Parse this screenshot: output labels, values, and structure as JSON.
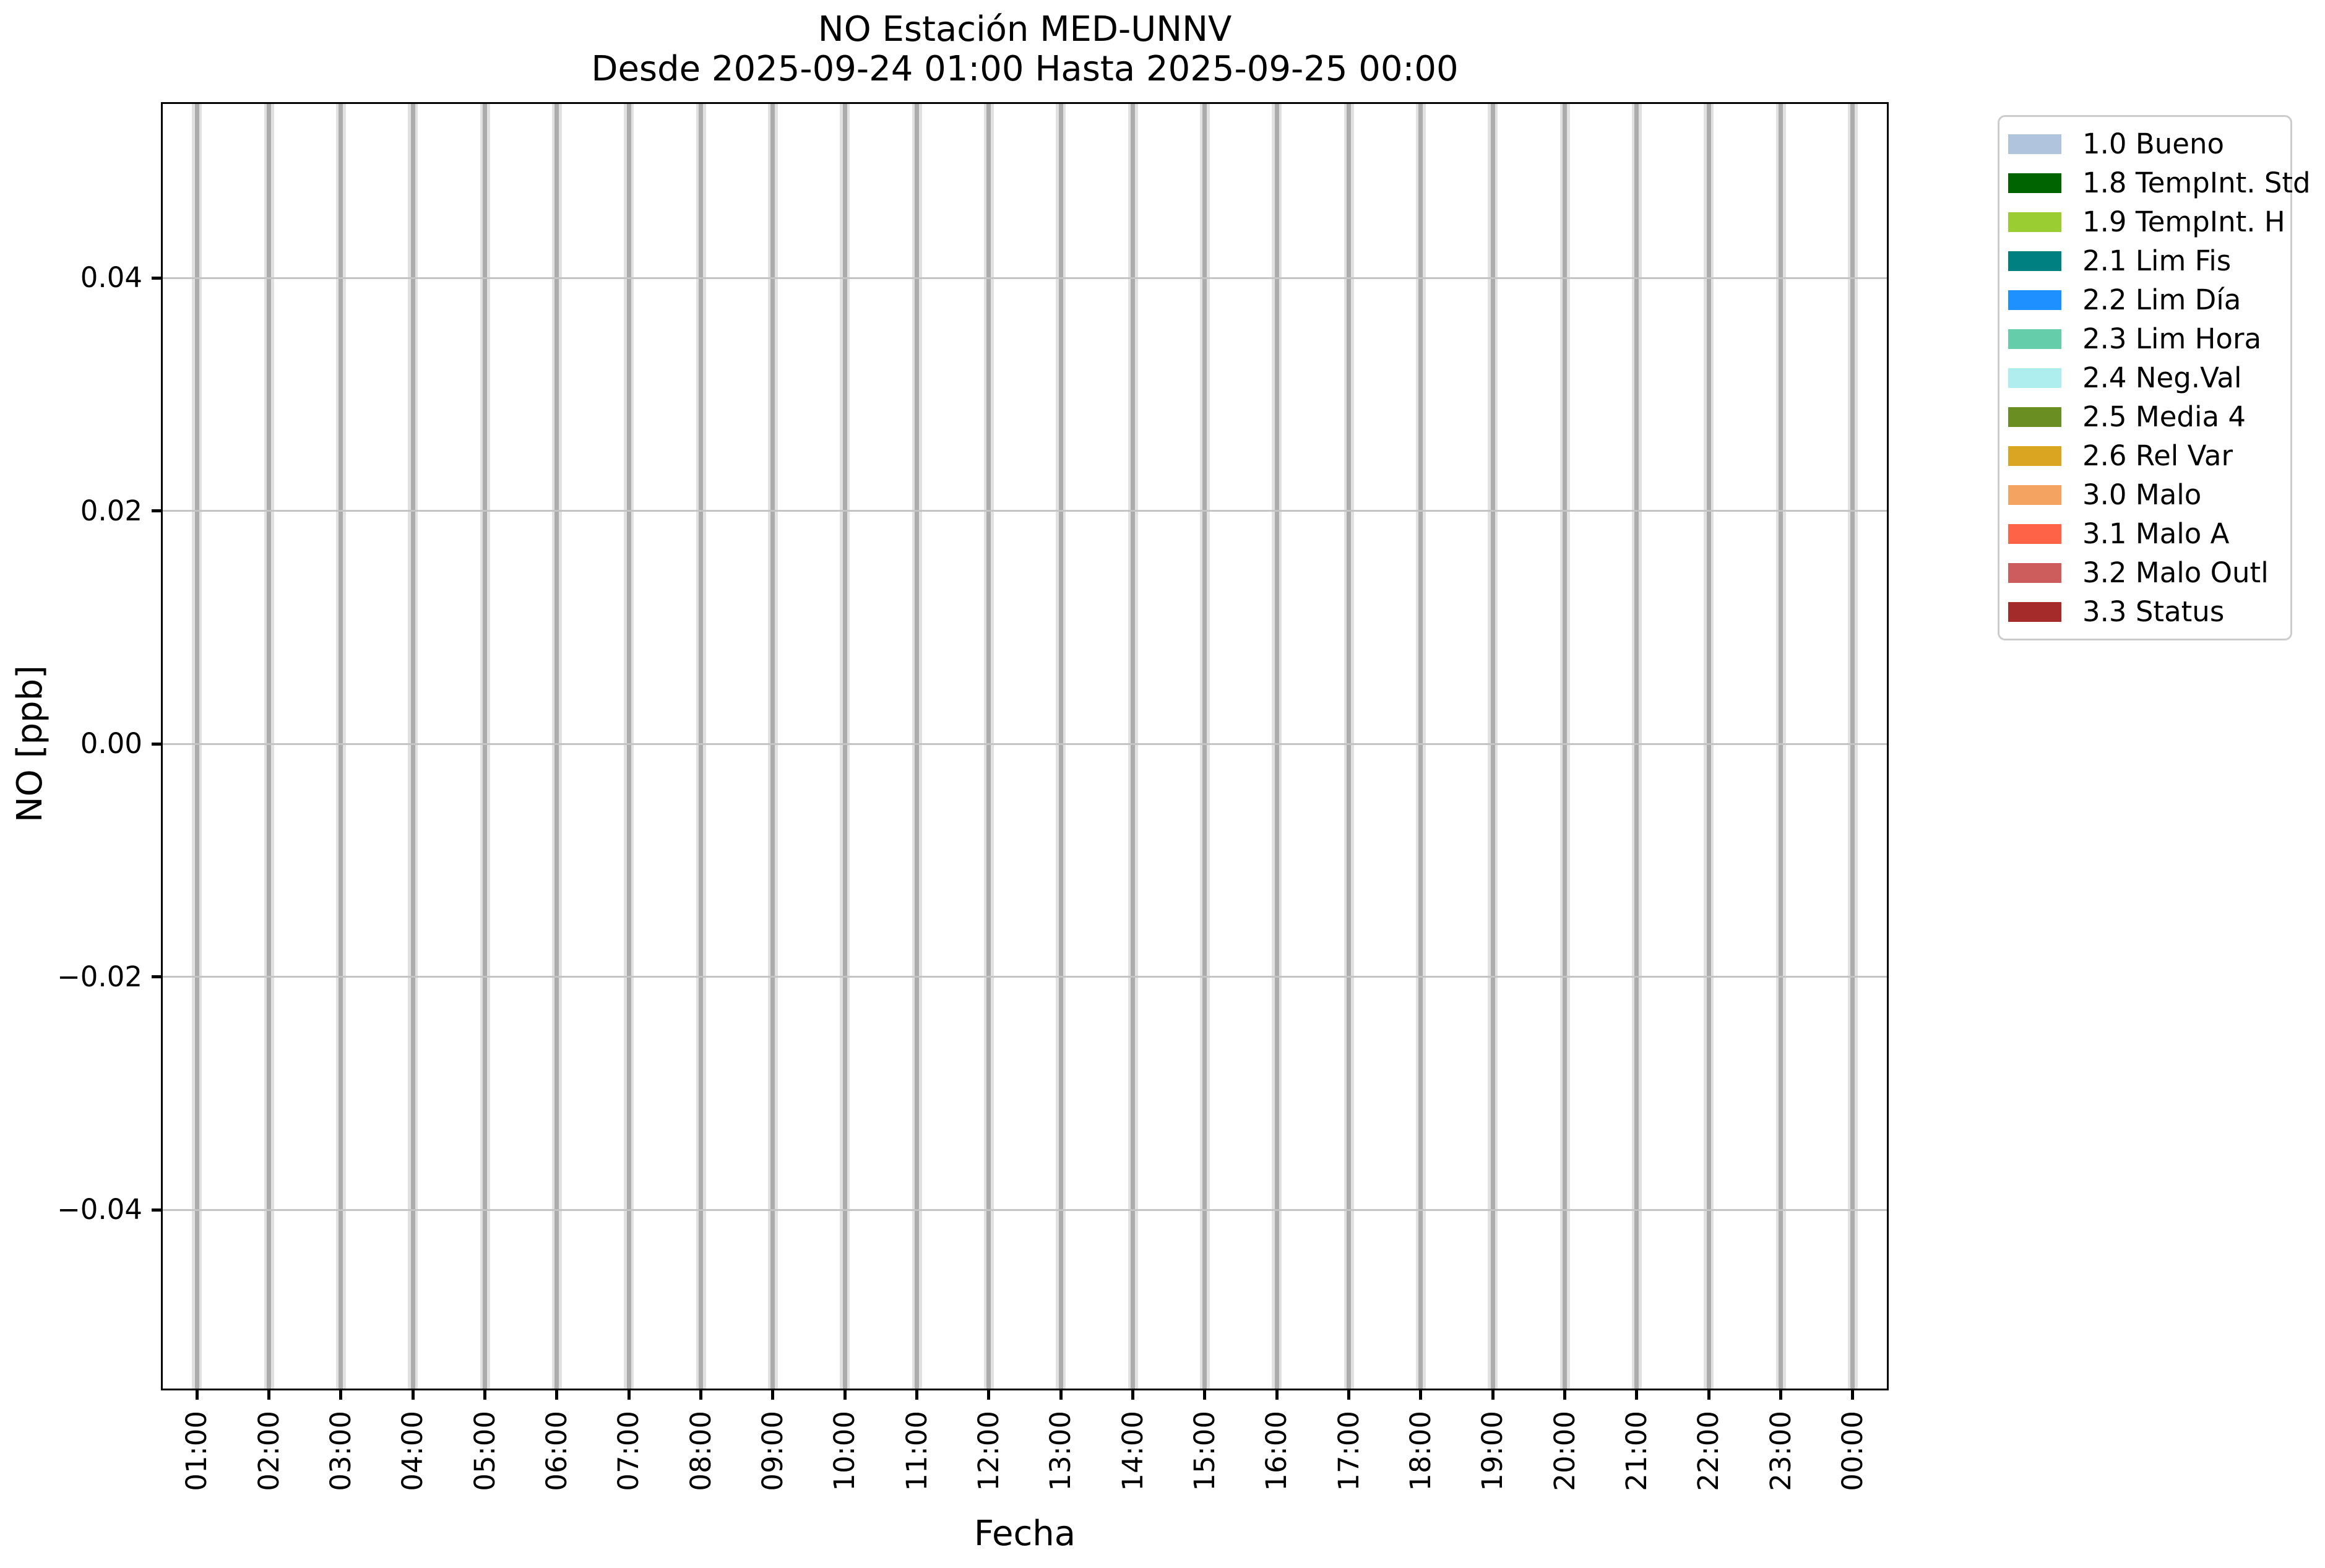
{
  "title": {
    "line1": "NO Estación MED-UNNV",
    "line2": "Desde 2025-09-24 01:00 Hasta 2025-09-25 00:00"
  },
  "axes": {
    "x_label": "Fecha",
    "y_label": "NO [ppb]"
  },
  "chart_data": {
    "type": "bar",
    "title": "NO Estación MED-UNNV",
    "subtitle": "Desde 2025-09-24 01:00 Hasta 2025-09-25 00:00",
    "xlabel": "Fecha",
    "ylabel": "NO [ppb]",
    "categories": [
      "01:00",
      "02:00",
      "03:00",
      "04:00",
      "05:00",
      "06:00",
      "07:00",
      "08:00",
      "09:00",
      "10:00",
      "11:00",
      "12:00",
      "13:00",
      "14:00",
      "15:00",
      "16:00",
      "17:00",
      "18:00",
      "19:00",
      "20:00",
      "21:00",
      "22:00",
      "23:00",
      "00:00"
    ],
    "series": [],
    "ylim": [
      -0.0555,
      0.0551
    ],
    "yticks": [
      0.04,
      0.02,
      0.0,
      -0.02,
      -0.04
    ],
    "ytick_labels": [
      "0.04",
      "0.02",
      "0.00",
      "−0.02",
      "−0.04"
    ],
    "grid": true,
    "legend_position": "outside-right",
    "legend": [
      {
        "label": "1.0 Bueno",
        "color": "#B0C4DE"
      },
      {
        "label": "1.8 TempInt. Std",
        "color": "#006400"
      },
      {
        "label": "1.9 TempInt. H",
        "color": "#9ACD32"
      },
      {
        "label": "2.1 Lim Fis",
        "color": "#008080"
      },
      {
        "label": "2.2 Lim Día",
        "color": "#1E90FF"
      },
      {
        "label": "2.3 Lim Hora",
        "color": "#66CDAA"
      },
      {
        "label": "2.4 Neg.Val",
        "color": "#AFEEEE"
      },
      {
        "label": "2.5 Media 4",
        "color": "#6B8E23"
      },
      {
        "label": "2.6 Rel Var",
        "color": "#DAA520"
      },
      {
        "label": "3.0 Malo",
        "color": "#F4A460"
      },
      {
        "label": "3.1 Malo A",
        "color": "#FF6347"
      },
      {
        "label": "3.2 Malo Outl",
        "color": "#CD5C5C"
      },
      {
        "label": "3.3 Status",
        "color": "#A52A2A"
      }
    ]
  },
  "style": {
    "grid_color": "#C4C4C4",
    "band_color": "#E1E1E1",
    "band_core_color": "#ACACAC",
    "spine_color": "#000000",
    "legend_border_color": "#CCCCCC"
  }
}
